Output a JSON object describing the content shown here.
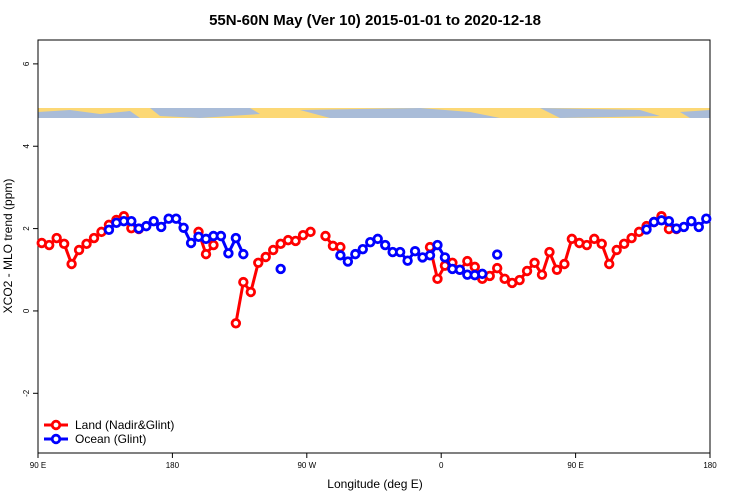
{
  "chart_data": {
    "type": "line",
    "title": "55N-60N May (Ver 10)   2015-01-01 to 2020-12-18",
    "x_label": "Longitude (deg E)",
    "y_label": "XCO2 - MLO trend (ppm)",
    "xlim": [
      90,
      540
    ],
    "ylim": [
      -3.45,
      6.58
    ],
    "xticks": [
      {
        "value": 90,
        "label": "90 E"
      },
      180,
      {
        "value": 270,
        "label": "90 W"
      },
      {
        "value": 360,
        "label": "0"
      },
      {
        "value": 450,
        "label": "90 E"
      },
      {
        "value": 540,
        "label": "180"
      }
    ],
    "yticks": [
      6,
      4,
      2,
      0,
      -2
    ],
    "legend": "bottom-left",
    "x": [
      92.5,
      97.5,
      102.5,
      107.5,
      112.5,
      117.5,
      122.5,
      127.5,
      132.5,
      137.5,
      142.5,
      147.5,
      152.5,
      157.5,
      162.5,
      167.5,
      172.5,
      177.5,
      182.5,
      187.5,
      192.5,
      197.5,
      202.5,
      207.5,
      212.5,
      217.5,
      222.5,
      227.5,
      232.5,
      237.5,
      242.5,
      247.5,
      252.5,
      257.5,
      262.5,
      267.5,
      272.5,
      277.5,
      282.5,
      287.5,
      292.5,
      297.5,
      302.5,
      307.5,
      312.5,
      317.5,
      322.5,
      327.5,
      332.5,
      337.5,
      342.5,
      347.5,
      352.5,
      357.5,
      362.5,
      367.5,
      372.5,
      377.5,
      382.5,
      387.5,
      392.5,
      397.5,
      402.5,
      407.5,
      412.5,
      417.5,
      422.5,
      427.5,
      432.5,
      437.5,
      442.5,
      447.5,
      452.5,
      457.5,
      462.5,
      467.5,
      472.5,
      477.5,
      482.5,
      487.5,
      492.5,
      497.5,
      502.5,
      507.5,
      512.5,
      517.5,
      522.5,
      527.5,
      532.5,
      537.5
    ],
    "series": [
      {
        "name": "Land (Nadir&Glint)",
        "color": "#ff0000",
        "values": [
          1.65,
          1.6,
          1.77,
          1.63,
          1.14,
          1.48,
          1.63,
          1.77,
          1.92,
          2.09,
          2.21,
          2.3,
          2.01,
          1.99,
          null,
          null,
          null,
          null,
          null,
          null,
          null,
          1.92,
          1.38,
          1.6,
          null,
          null,
          -0.3,
          0.7,
          0.46,
          1.17,
          1.31,
          1.48,
          1.63,
          1.72,
          1.7,
          1.84,
          1.92,
          null,
          1.82,
          1.58,
          1.55,
          null,
          null,
          null,
          null,
          null,
          null,
          null,
          null,
          null,
          null,
          null,
          1.55,
          0.78,
          1.1,
          1.17,
          1.0,
          1.21,
          1.07,
          0.78,
          0.85,
          1.04,
          0.78,
          0.68,
          0.75,
          0.97,
          1.17,
          0.88,
          1.43,
          1.0,
          1.14,
          1.75,
          1.65,
          1.6,
          1.75,
          1.63,
          1.14,
          1.48,
          1.63,
          1.77,
          1.92,
          2.06,
          2.16,
          2.3,
          1.99,
          1.99,
          null,
          null,
          null,
          null
        ]
      },
      {
        "name": "Ocean (Glint)",
        "color": "#0000ff",
        "values": [
          null,
          null,
          null,
          null,
          null,
          null,
          null,
          null,
          null,
          1.97,
          2.14,
          2.18,
          2.18,
          2.0,
          2.06,
          2.18,
          2.04,
          2.24,
          2.24,
          2.02,
          1.65,
          1.8,
          1.75,
          1.82,
          1.82,
          1.4,
          1.77,
          1.38,
          null,
          null,
          null,
          null,
          1.02,
          null,
          null,
          null,
          null,
          null,
          null,
          null,
          1.35,
          1.2,
          1.38,
          1.5,
          1.67,
          1.75,
          1.6,
          1.43,
          1.43,
          1.22,
          1.45,
          1.3,
          1.35,
          1.6,
          1.3,
          1.02,
          1.0,
          0.88,
          0.87,
          0.9,
          null,
          1.37,
          null,
          null,
          null,
          null,
          null,
          null,
          null,
          null,
          null,
          null,
          null,
          null,
          null,
          null,
          null,
          null,
          null,
          null,
          null,
          1.98,
          2.16,
          2.2,
          2.18,
          2.0,
          2.04,
          2.18,
          2.04,
          2.24
        ]
      }
    ]
  }
}
